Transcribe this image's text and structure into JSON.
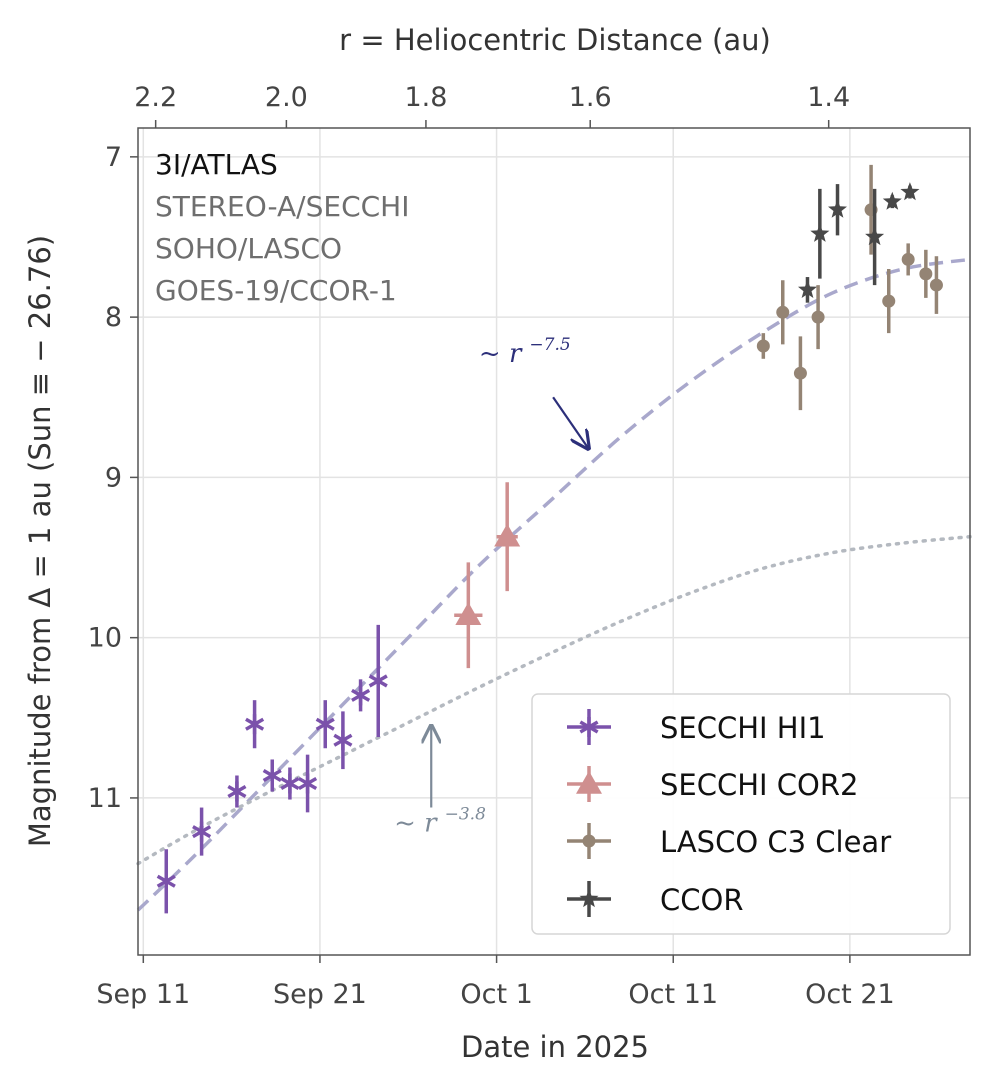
{
  "colors": {
    "secchi_hi1": "#7b52ab",
    "secchi_cor2": "#cf8f8f",
    "lasco_c3": "#948474",
    "ccor": "#484848",
    "fit_75": "#a9a8cc",
    "fit_38": "#b4b9c0",
    "annot_75": "#2c2f7a",
    "annot_38": "#7d8a98",
    "grid": "#e3e3e3",
    "frame": "#555555"
  },
  "chart_data": {
    "type": "scatter",
    "title": "",
    "xlabel": "Date in 2025",
    "ylabel": "Magnitude from Δ = 1 au (Sun ≡ − 26.76)",
    "x_unit": "days since Sep 1, 2025",
    "xlim": [
      10.7,
      57.8
    ],
    "ylim": [
      11.98,
      6.82
    ],
    "y_inverted": true,
    "grid": true,
    "x_ticks": [
      {
        "value": 11,
        "label": "Sep 11"
      },
      {
        "value": 21,
        "label": "Sep 21"
      },
      {
        "value": 31,
        "label": "Oct 1"
      },
      {
        "value": 41,
        "label": "Oct 11"
      },
      {
        "value": 51,
        "label": "Oct 21"
      }
    ],
    "y_ticks": [
      {
        "value": 7,
        "label": "7"
      },
      {
        "value": 8,
        "label": "8"
      },
      {
        "value": 9,
        "label": "9"
      },
      {
        "value": 10,
        "label": "10"
      },
      {
        "value": 11,
        "label": "11"
      }
    ],
    "top_axis": {
      "label": "r = Heliocentric Distance (au)",
      "ticks": [
        {
          "value": 11.7,
          "label": "2.2"
        },
        {
          "value": 19.1,
          "label": "2.0"
        },
        {
          "value": 27.0,
          "label": "1.8"
        },
        {
          "value": 36.3,
          "label": "1.6"
        },
        {
          "value": 49.8,
          "label": "1.4"
        }
      ]
    },
    "annotation": {
      "title": "3I/ATLAS",
      "lines": [
        "STEREO-A/SECCHI",
        "SOHO/LASCO",
        "GOES-19/CCOR-1"
      ]
    },
    "legend": {
      "position": "lower-right",
      "entries": [
        {
          "key": "secchi_hi1",
          "label": "SECCHI HI1"
        },
        {
          "key": "secchi_cor2",
          "label": "SECCHI COR2"
        },
        {
          "key": "lasco_c3",
          "label": "LASCO C3 Clear"
        },
        {
          "key": "ccor",
          "label": "CCOR"
        }
      ]
    },
    "series": [
      {
        "key": "secchi_hi1",
        "name": "SECCHI HI1",
        "marker": "asterisk",
        "points": [
          {
            "x": 12.3,
            "y": 11.52,
            "yerr": 0.2
          },
          {
            "x": 14.3,
            "y": 11.21,
            "yerr": 0.15
          },
          {
            "x": 16.3,
            "y": 10.96,
            "yerr": 0.1
          },
          {
            "x": 17.3,
            "y": 10.54,
            "yerr": 0.15
          },
          {
            "x": 18.3,
            "y": 10.86,
            "yerr": 0.1
          },
          {
            "x": 19.3,
            "y": 10.91,
            "yerr": 0.1
          },
          {
            "x": 20.3,
            "y": 10.91,
            "yerr": 0.18
          },
          {
            "x": 21.3,
            "y": 10.54,
            "yerr": 0.15
          },
          {
            "x": 22.3,
            "y": 10.64,
            "yerr": 0.18
          },
          {
            "x": 23.3,
            "y": 10.36,
            "yerr": 0.1
          },
          {
            "x": 24.3,
            "y": 10.27,
            "yerr": 0.35
          }
        ]
      },
      {
        "key": "secchi_cor2",
        "name": "SECCHI COR2",
        "marker": "triangle",
        "points": [
          {
            "x": 29.4,
            "y": 9.86,
            "yerr": 0.33,
            "xerr": 0.8
          },
          {
            "x": 31.6,
            "y": 9.37,
            "yerr": 0.34,
            "xerr": 0.6
          }
        ]
      },
      {
        "key": "lasco_c3",
        "name": "LASCO C3 Clear",
        "marker": "dot",
        "points": [
          {
            "x": 46.1,
            "y": 8.18,
            "yerr": 0.08
          },
          {
            "x": 47.2,
            "y": 7.97,
            "yerr": 0.2
          },
          {
            "x": 48.2,
            "y": 8.35,
            "yerr": 0.23
          },
          {
            "x": 49.2,
            "y": 8.0,
            "yerr": 0.2
          },
          {
            "x": 52.2,
            "y": 7.33,
            "yerr": 0.28
          },
          {
            "x": 53.2,
            "y": 7.9,
            "yerr": 0.2
          },
          {
            "x": 54.3,
            "y": 7.64,
            "yerr": 0.1
          },
          {
            "x": 55.3,
            "y": 7.73,
            "yerr": 0.15
          },
          {
            "x": 55.9,
            "y": 7.8,
            "yerr": 0.18
          }
        ]
      },
      {
        "key": "ccor",
        "name": "CCOR",
        "marker": "star",
        "points": [
          {
            "x": 48.6,
            "y": 7.83,
            "yerr": 0.08
          },
          {
            "x": 49.3,
            "y": 7.48,
            "yerr": 0.28
          },
          {
            "x": 50.3,
            "y": 7.33,
            "yerr": 0.16
          },
          {
            "x": 52.4,
            "y": 7.5,
            "yerr": 0.3
          },
          {
            "x": 53.4,
            "y": 7.28,
            "yerr": 0.04
          },
          {
            "x": 54.4,
            "y": 7.22,
            "yerr": 0.04
          }
        ]
      }
    ],
    "fits": [
      {
        "key": "fit_75",
        "label": "~ r",
        "exponent": "−7.5",
        "style": "dashed",
        "x": [
          10.7,
          14,
          18,
          22,
          26,
          30,
          34,
          38,
          42,
          46,
          50,
          54,
          57.8
        ],
        "y": [
          11.7,
          11.35,
          10.9,
          10.45,
          10.0,
          9.55,
          9.15,
          8.75,
          8.4,
          8.1,
          7.85,
          7.7,
          7.64
        ]
      },
      {
        "key": "fit_38",
        "label": "~ r",
        "exponent": "−3.8",
        "style": "dotted",
        "x": [
          10.7,
          14,
          18,
          22,
          26,
          30,
          34,
          38,
          42,
          46,
          50,
          54,
          57.8
        ],
        "y": [
          11.41,
          11.2,
          10.97,
          10.75,
          10.53,
          10.31,
          10.1,
          9.9,
          9.72,
          9.57,
          9.47,
          9.41,
          9.37
        ]
      }
    ],
    "power_law_labels": [
      {
        "key": "fit_75",
        "text": "~ r",
        "exponent": "−7.5",
        "label_x": 30.0,
        "label_y": 8.28,
        "arrow_from": [
          34.2,
          8.5
        ],
        "arrow_to": [
          36.2,
          8.82
        ]
      },
      {
        "key": "fit_38",
        "text": "~ r",
        "exponent": "−3.8",
        "label_x": 25.2,
        "label_y": 11.21,
        "arrow_from": [
          27.3,
          11.06
        ],
        "arrow_to": [
          27.3,
          10.55
        ]
      }
    ]
  }
}
